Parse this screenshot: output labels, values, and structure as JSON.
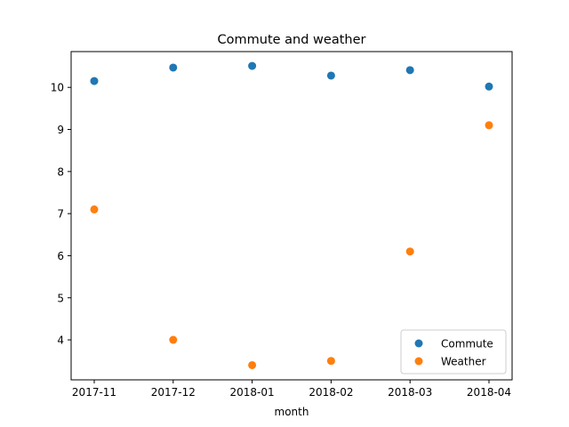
{
  "chart_data": {
    "type": "scatter",
    "title": "Commute and weather",
    "xlabel": "month",
    "ylabel": "",
    "x": [
      "2017-11",
      "2017-12",
      "2018-01",
      "2018-02",
      "2018-03",
      "2018-04"
    ],
    "ylim": [
      3.05,
      10.85
    ],
    "yticks": [
      4,
      5,
      6,
      7,
      8,
      9,
      10
    ],
    "grid": false,
    "legend_position": "lower right",
    "series": [
      {
        "name": "Commute",
        "color": "#1f77b4",
        "values": [
          10.15,
          10.47,
          10.51,
          10.28,
          10.41,
          10.02
        ]
      },
      {
        "name": "Weather",
        "color": "#ff7f0e",
        "values": [
          7.1,
          4.0,
          3.4,
          3.5,
          6.1,
          9.1
        ]
      }
    ]
  }
}
